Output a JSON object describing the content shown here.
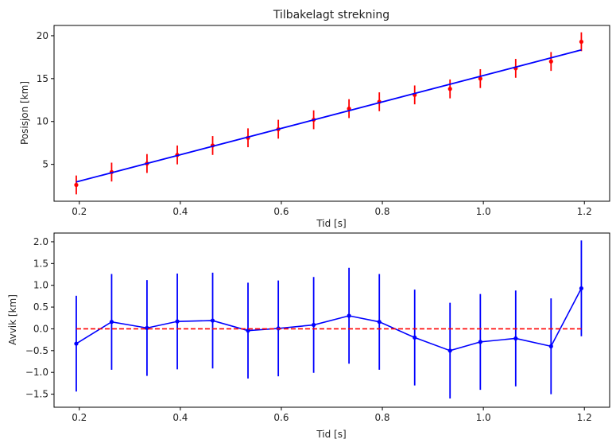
{
  "chart_data": [
    {
      "type": "line",
      "title": "Tilbakelagt strekning",
      "xlabel": "Tid [s]",
      "ylabel": "Posisjon [km]",
      "xlim": [
        0.15,
        1.25
      ],
      "ylim": [
        0.7,
        21.2
      ],
      "xticks": [
        "0.2",
        "0.4",
        "0.6",
        "0.8",
        "1.0",
        "1.2"
      ],
      "yticks": [
        "5",
        "10",
        "15",
        "20"
      ],
      "grid": false,
      "series": [
        {
          "kind": "errorbar",
          "color": "#ff0000",
          "x": [
            0.194,
            0.264,
            0.334,
            0.394,
            0.464,
            0.534,
            0.594,
            0.664,
            0.734,
            0.794,
            0.864,
            0.934,
            0.994,
            1.064,
            1.134,
            1.194
          ],
          "y": [
            2.6,
            4.1,
            5.1,
            6.1,
            7.2,
            8.1,
            9.1,
            10.2,
            11.5,
            12.3,
            13.1,
            13.8,
            15.0,
            16.2,
            17.0,
            19.3
          ],
          "yerr": [
            1.1,
            1.1,
            1.1,
            1.1,
            1.1,
            1.1,
            1.1,
            1.1,
            1.1,
            1.1,
            1.1,
            1.1,
            1.1,
            1.1,
            1.1,
            1.1
          ]
        },
        {
          "kind": "line",
          "color": "#0000ff",
          "x": [
            0.194,
            1.194
          ],
          "y": [
            2.95,
            18.35
          ]
        }
      ]
    },
    {
      "type": "line",
      "title": "",
      "xlabel": "Tid [s]",
      "ylabel": "Avvik [km]",
      "xlim": [
        0.15,
        1.25
      ],
      "ylim": [
        -1.8,
        2.2
      ],
      "xticks": [
        "0.2",
        "0.4",
        "0.6",
        "0.8",
        "1.0",
        "1.2"
      ],
      "yticks": [
        "2.0",
        "1.5",
        "1.0",
        "0.5",
        "0.0",
        "−0.5",
        "−1.0",
        "−1.5"
      ],
      "grid": false,
      "series": [
        {
          "kind": "errorbar-line",
          "color": "#0000ff",
          "x": [
            0.194,
            0.264,
            0.334,
            0.394,
            0.464,
            0.534,
            0.594,
            0.664,
            0.734,
            0.794,
            0.864,
            0.934,
            0.994,
            1.064,
            1.134,
            1.194
          ],
          "y": [
            -0.34,
            0.16,
            0.02,
            0.17,
            0.19,
            -0.04,
            0.01,
            0.09,
            0.3,
            0.16,
            -0.2,
            -0.5,
            -0.3,
            -0.22,
            -0.4,
            0.93
          ],
          "yerr": [
            1.1,
            1.1,
            1.1,
            1.1,
            1.1,
            1.1,
            1.1,
            1.1,
            1.1,
            1.1,
            1.1,
            1.1,
            1.1,
            1.1,
            1.1,
            1.1
          ]
        },
        {
          "kind": "dashed",
          "color": "#ff0000",
          "x": [
            0.194,
            1.194
          ],
          "y": [
            0.0,
            0.0
          ]
        }
      ]
    }
  ]
}
